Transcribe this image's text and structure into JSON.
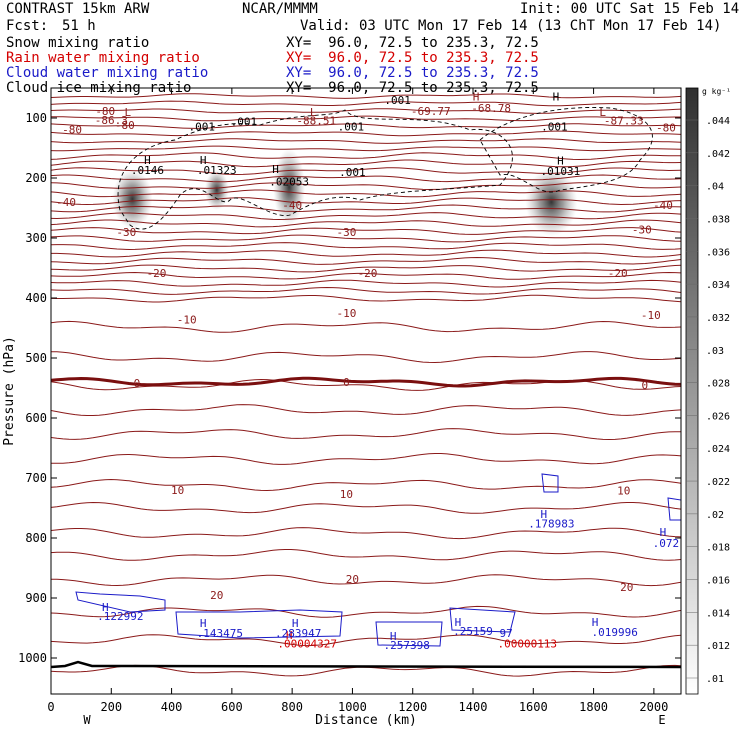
{
  "header": {
    "title": "CONTRAST 15km ARW",
    "org": "NCAR/MMMM",
    "init": "Init: 00 UTC Sat 15 Feb 14",
    "fcst_label": "Fcst:",
    "fcst_value": "51 h",
    "valid": "Valid: 03 UTC Mon 17 Feb 14 (13 ChT Mon 17 Feb 14)",
    "fields": [
      {
        "name": "Snow mixing ratio",
        "xy": "XY=  96.0, 72.5 to 235.3, 72.5",
        "color": "#000000"
      },
      {
        "name": "Rain water mixing ratio",
        "xy": "XY=  96.0, 72.5 to 235.3, 72.5",
        "color": "#d40000"
      },
      {
        "name": "Cloud water mixing ratio",
        "xy": "XY=  96.0, 72.5 to 235.3, 72.5",
        "color": "#1a1ac8"
      },
      {
        "name": "Cloud ice mixing ratio",
        "xy": "XY=  96.0, 72.5 to 235.3, 72.5",
        "color": "#000000"
      }
    ]
  },
  "colorbar": {
    "unit": "g kg⁻¹",
    "ticks": [
      ".044",
      ".042",
      ".04",
      ".038",
      ".036",
      ".034",
      ".032",
      ".03",
      ".028",
      ".026",
      ".024",
      ".022",
      ".02",
      ".018",
      ".016",
      ".014",
      ".012",
      ".01"
    ]
  },
  "chart_data": {
    "type": "heatmap",
    "xlabel": "Distance (km)",
    "ylabel": "Pressure (hPa)",
    "xlim": [
      0,
      2090
    ],
    "ylim": [
      1050,
      40
    ],
    "x_ticks": [
      0,
      200,
      400,
      600,
      800,
      1000,
      1200,
      1400,
      1600,
      1800,
      2000
    ],
    "y_ticks": [
      100,
      200,
      300,
      400,
      500,
      600,
      700,
      800,
      900,
      1000
    ],
    "x_end_labels": {
      "left": "W",
      "right": "E"
    },
    "temperature_contours": [
      {
        "label": "-80",
        "p": 118
      },
      {
        "label": "-40",
        "p": 244
      },
      {
        "label": "-30",
        "p": 290
      },
      {
        "label": "-20",
        "p": 358
      },
      {
        "label": "-10",
        "p": 436
      },
      {
        "label": "0",
        "p": 540
      },
      {
        "label": "10",
        "p": 720
      },
      {
        "label": "20",
        "p": 895
      }
    ],
    "contour_text_labels": [
      {
        "text": "-80",
        "x": 245,
        "p": 112
      },
      {
        "text": "-80",
        "x": 180,
        "p": 88
      },
      {
        "text": "-80",
        "x": 70,
        "p": 119
      },
      {
        "text": "-86.3",
        "x": 200,
        "p": 103
      },
      {
        "text": "-88.51",
        "x": 880,
        "p": 104
      },
      {
        "text": "-69.77",
        "x": 1260,
        "p": 88
      },
      {
        "text": "-68.78",
        "x": 1460,
        "p": 83
      },
      {
        "text": "-87.33",
        "x": 1900,
        "p": 104
      },
      {
        "text": "-80",
        "x": 2040,
        "p": 116
      },
      {
        "text": "-40",
        "x": 50,
        "p": 240
      },
      {
        "text": "-40",
        "x": 800,
        "p": 245
      },
      {
        "text": "-40",
        "x": 2030,
        "p": 245
      },
      {
        "text": "-30",
        "x": 250,
        "p": 290
      },
      {
        "text": "-30",
        "x": 980,
        "p": 290
      },
      {
        "text": "-30",
        "x": 1960,
        "p": 286
      },
      {
        "text": "-20",
        "x": 350,
        "p": 358
      },
      {
        "text": "-20",
        "x": 1050,
        "p": 358
      },
      {
        "text": "-20",
        "x": 1880,
        "p": 358
      },
      {
        "text": "-10",
        "x": 450,
        "p": 436
      },
      {
        "text": "-10",
        "x": 980,
        "p": 425
      },
      {
        "text": "-10",
        "x": 1990,
        "p": 428
      },
      {
        "text": "0",
        "x": 285,
        "p": 542
      },
      {
        "text": "0",
        "x": 980,
        "p": 540
      },
      {
        "text": "0",
        "x": 1970,
        "p": 545
      },
      {
        "text": "10",
        "x": 420,
        "p": 720
      },
      {
        "text": "10",
        "x": 980,
        "p": 727
      },
      {
        "text": "10",
        "x": 1900,
        "p": 721
      },
      {
        "text": "20",
        "x": 550,
        "p": 895
      },
      {
        "text": "20",
        "x": 1000,
        "p": 868
      },
      {
        "text": "20",
        "x": 1910,
        "p": 882
      }
    ],
    "markers": [
      {
        "text": "L",
        "x": 255,
        "p": 90,
        "color": "#8b1a1a"
      },
      {
        "text": "L",
        "x": 870,
        "p": 90,
        "color": "#8b1a1a"
      },
      {
        "text": "L",
        "x": 1830,
        "p": 90,
        "color": "#8b1a1a"
      },
      {
        "text": "H",
        "x": 1410,
        "p": 64,
        "color": "#8b1a1a"
      },
      {
        "text": "H",
        "x": 1675,
        "p": 64,
        "color": "#000000"
      },
      {
        "text": "H",
        "x": 320,
        "p": 170,
        "color": "#000000"
      },
      {
        "text": "H",
        "x": 505,
        "p": 170,
        "color": "#000000"
      },
      {
        "text": "H",
        "x": 745,
        "p": 185,
        "color": "#000000"
      },
      {
        "text": "H",
        "x": 1690,
        "p": 171,
        "color": "#000000"
      },
      {
        "text": "H",
        "x": 1635,
        "p": 760,
        "color": "#1a1ac8"
      },
      {
        "text": "H",
        "x": 2030,
        "p": 790,
        "color": "#1a1ac8"
      },
      {
        "text": "H",
        "x": 180,
        "p": 915,
        "color": "#1a1ac8"
      },
      {
        "text": "H",
        "x": 505,
        "p": 942,
        "color": "#1a1ac8"
      },
      {
        "text": "H",
        "x": 810,
        "p": 942,
        "color": "#1a1ac8"
      },
      {
        "text": "H",
        "x": 1135,
        "p": 963,
        "color": "#1a1ac8"
      },
      {
        "text": "H",
        "x": 1350,
        "p": 940,
        "color": "#1a1ac8"
      },
      {
        "text": "H",
        "x": 1805,
        "p": 940,
        "color": "#1a1ac8"
      },
      {
        "text": "H",
        "x": 790,
        "p": 962,
        "color": "#d40000"
      }
    ],
    "value_labels": [
      {
        "text": ".001",
        "x": 500,
        "p": 114,
        "color": "#000000"
      },
      {
        "text": ".001",
        "x": 640,
        "p": 106,
        "color": "#000000"
      },
      {
        "text": ".001",
        "x": 995,
        "p": 114,
        "color": "#000000"
      },
      {
        "text": ".001",
        "x": 1670,
        "p": 114,
        "color": "#000000"
      },
      {
        "text": ".001",
        "x": 1000,
        "p": 190,
        "color": "#000000"
      },
      {
        "text": ".001",
        "x": 1150,
        "p": 70,
        "color": "#000000"
      },
      {
        "text": ".0146",
        "x": 320,
        "p": 187,
        "color": "#000000"
      },
      {
        "text": ".01323",
        "x": 550,
        "p": 187,
        "color": "#000000"
      },
      {
        "text": ".02053",
        "x": 790,
        "p": 206,
        "color": "#000000"
      },
      {
        "text": ".01031",
        "x": 1690,
        "p": 188,
        "color": "#000000"
      },
      {
        "text": ".178983",
        "x": 1660,
        "p": 776,
        "color": "#1a1ac8"
      },
      {
        "text": ".072",
        "x": 2040,
        "p": 808,
        "color": "#1a1ac8"
      },
      {
        "text": ".122992",
        "x": 230,
        "p": 930,
        "color": "#1a1ac8"
      },
      {
        "text": ".143475",
        "x": 560,
        "p": 958,
        "color": "#1a1ac8"
      },
      {
        "text": ".283947",
        "x": 820,
        "p": 958,
        "color": "#1a1ac8"
      },
      {
        "text": ".257398",
        "x": 1180,
        "p": 978,
        "color": "#1a1ac8"
      },
      {
        "text": ".25159",
        "x": 1400,
        "p": 955,
        "color": "#1a1ac8"
      },
      {
        "text": ".019996",
        "x": 1870,
        "p": 957,
        "color": "#1a1ac8"
      },
      {
        "text": ".00004327",
        "x": 850,
        "p": 976,
        "color": "#d40000"
      },
      {
        "text": ".00000113",
        "x": 1580,
        "p": 976,
        "color": "#d40000"
      },
      {
        "text": "97",
        "x": 1510,
        "p": 958,
        "color": "#1a1ac8"
      }
    ],
    "ice_maxima": [
      {
        "x": 270,
        "p": 235,
        "value": 0.0146
      },
      {
        "x": 550,
        "p": 220,
        "value": 0.01323
      },
      {
        "x": 790,
        "p": 215,
        "value": 0.02053
      },
      {
        "x": 1660,
        "p": 240,
        "value": 0.01031
      }
    ],
    "grid": false,
    "legend": "right colorbar"
  }
}
